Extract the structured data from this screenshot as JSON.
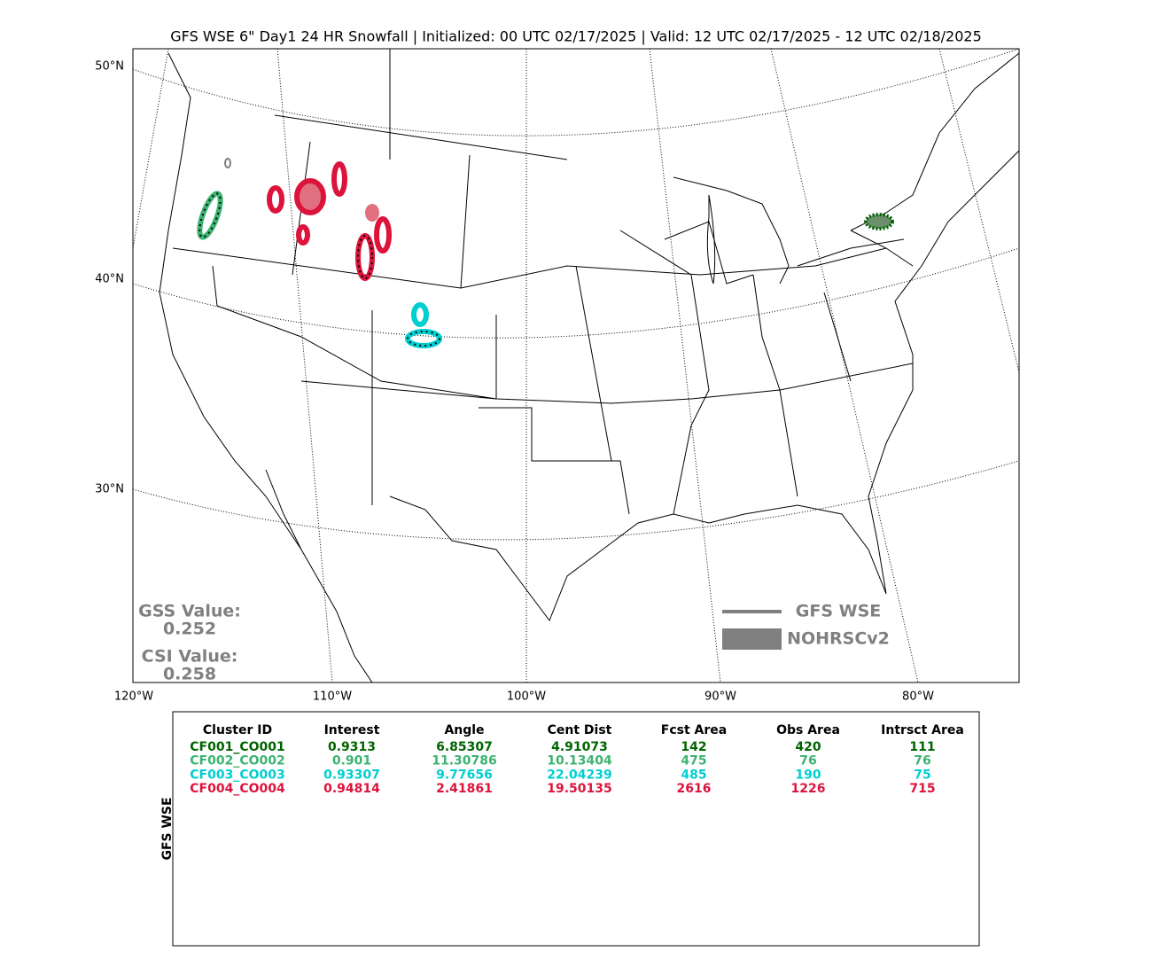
{
  "title": "GFS WSE 6\" Day1 24 HR Snowfall | Initialized: 00 UTC 02/17/2025 | Valid: 12 UTC 02/17/2025 - 12 UTC 02/18/2025",
  "map": {
    "lat_labels": [
      "50°N",
      "40°N",
      "30°N"
    ],
    "lon_labels": [
      "120°W",
      "110°W",
      "100°W",
      "90°W",
      "80°W"
    ],
    "stats": [
      {
        "label": "GSS Value:",
        "value": "0.252"
      },
      {
        "label": "CSI Value:",
        "value": "0.258"
      }
    ],
    "legend": [
      {
        "label": "GFS WSE"
      },
      {
        "label": "NOHRSCv2"
      }
    ],
    "legend_color": "#808080"
  },
  "table": {
    "side_label": "GFS WSE",
    "columns": [
      "Cluster ID",
      "Interest",
      "Angle",
      "Cent Dist",
      "Fcst Area",
      "Obs Area",
      "Intrsct Area"
    ],
    "rows": [
      [
        "CF001_CO001",
        "0.9313",
        "6.85307",
        "4.91073",
        "142",
        "420",
        "111"
      ],
      [
        "CF002_CO002",
        "0.901",
        "11.30786",
        "10.13404",
        "475",
        "76",
        "76"
      ],
      [
        "CF003_CO003",
        "0.93307",
        "9.77656",
        "22.04239",
        "485",
        "190",
        "75"
      ],
      [
        "CF004_CO004",
        "0.94814",
        "2.41861",
        "19.50135",
        "2616",
        "1226",
        "715"
      ]
    ],
    "row_colors": [
      "#006400",
      "#3cb371",
      "#00ced1",
      "#dc143c"
    ]
  }
}
